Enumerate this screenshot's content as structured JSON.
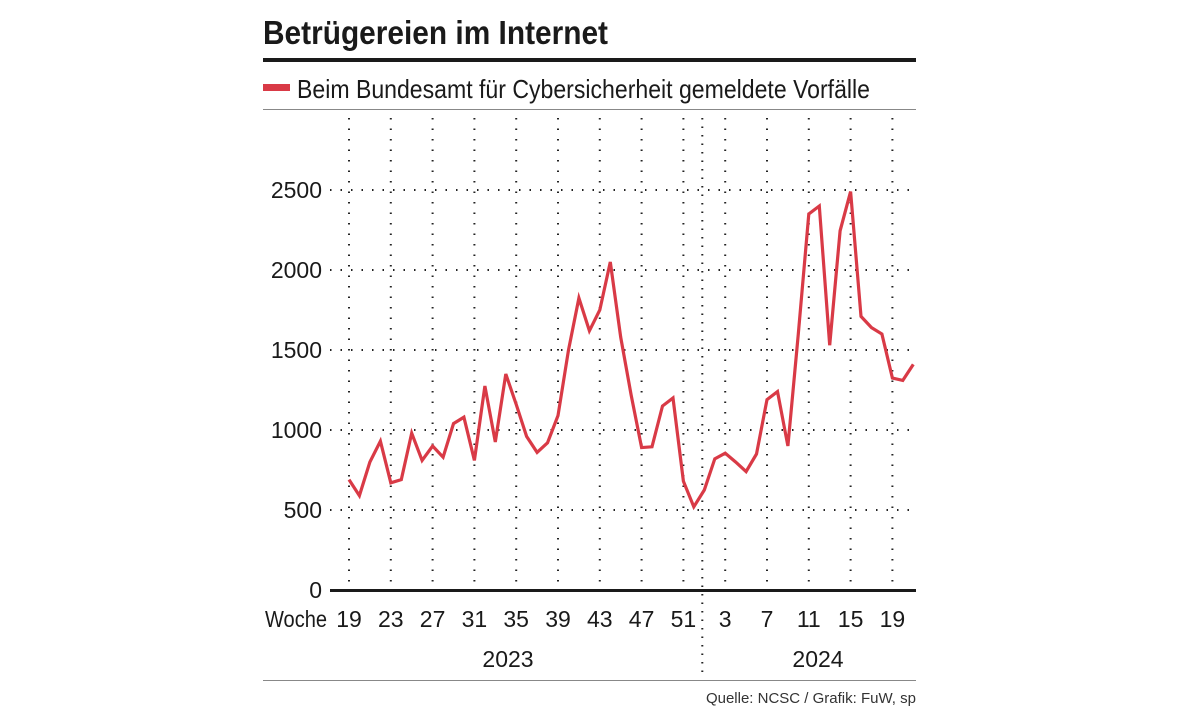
{
  "chart_data": {
    "type": "line",
    "title": "Betrügereien im Internet",
    "legend": [
      {
        "label": "Beim Bundesamt für Cybersicherheit gemeldete Vorfälle",
        "color": "#d93a46"
      }
    ],
    "xlabel": "Woche",
    "ylim": [
      0,
      2950
    ],
    "yticks": [
      "0",
      "500",
      "1000",
      "1500",
      "2000",
      "2500"
    ],
    "xticks": [
      {
        "year": 2023,
        "week": 19,
        "label": "19"
      },
      {
        "year": 2023,
        "week": 23,
        "label": "23"
      },
      {
        "year": 2023,
        "week": 27,
        "label": "27"
      },
      {
        "year": 2023,
        "week": 31,
        "label": "31"
      },
      {
        "year": 2023,
        "week": 35,
        "label": "35"
      },
      {
        "year": 2023,
        "week": 39,
        "label": "39"
      },
      {
        "year": 2023,
        "week": 43,
        "label": "43"
      },
      {
        "year": 2023,
        "week": 47,
        "label": "47"
      },
      {
        "year": 2023,
        "week": 51,
        "label": "51"
      },
      {
        "year": 2024,
        "week": 3,
        "label": "3"
      },
      {
        "year": 2024,
        "week": 7,
        "label": "7"
      },
      {
        "year": 2024,
        "week": 11,
        "label": "11"
      },
      {
        "year": 2024,
        "week": 15,
        "label": "15"
      },
      {
        "year": 2024,
        "week": 19,
        "label": "19"
      }
    ],
    "years": [
      "2023",
      "2024"
    ],
    "grid": "dotted",
    "series": [
      {
        "name": "Beim Bundesamt für Cybersicherheit gemeldete Vorfälle",
        "color": "#d93a46",
        "points": [
          [
            2023,
            19,
            690
          ],
          [
            2023,
            20,
            590
          ],
          [
            2023,
            21,
            800
          ],
          [
            2023,
            22,
            930
          ],
          [
            2023,
            23,
            670
          ],
          [
            2023,
            24,
            690
          ],
          [
            2023,
            25,
            980
          ],
          [
            2023,
            26,
            810
          ],
          [
            2023,
            27,
            900
          ],
          [
            2023,
            28,
            830
          ],
          [
            2023,
            29,
            1040
          ],
          [
            2023,
            30,
            1080
          ],
          [
            2023,
            31,
            810
          ],
          [
            2023,
            32,
            1275
          ],
          [
            2023,
            33,
            925
          ],
          [
            2023,
            34,
            1350
          ],
          [
            2023,
            35,
            1160
          ],
          [
            2023,
            36,
            960
          ],
          [
            2023,
            37,
            860
          ],
          [
            2023,
            38,
            920
          ],
          [
            2023,
            39,
            1090
          ],
          [
            2023,
            40,
            1500
          ],
          [
            2023,
            41,
            1825
          ],
          [
            2023,
            42,
            1620
          ],
          [
            2023,
            43,
            1750
          ],
          [
            2023,
            44,
            2050
          ],
          [
            2023,
            45,
            1580
          ],
          [
            2023,
            46,
            1220
          ],
          [
            2023,
            47,
            890
          ],
          [
            2023,
            48,
            895
          ],
          [
            2023,
            49,
            1150
          ],
          [
            2023,
            50,
            1200
          ],
          [
            2023,
            51,
            680
          ],
          [
            2023,
            52,
            520
          ],
          [
            2024,
            1,
            625
          ],
          [
            2024,
            2,
            820
          ],
          [
            2024,
            3,
            855
          ],
          [
            2024,
            4,
            800
          ],
          [
            2024,
            5,
            740
          ],
          [
            2024,
            6,
            850
          ],
          [
            2024,
            7,
            1190
          ],
          [
            2024,
            8,
            1240
          ],
          [
            2024,
            9,
            900
          ],
          [
            2024,
            10,
            1600
          ],
          [
            2024,
            11,
            2350
          ],
          [
            2024,
            12,
            2400
          ],
          [
            2024,
            13,
            1530
          ],
          [
            2024,
            14,
            2245
          ],
          [
            2024,
            15,
            2490
          ],
          [
            2024,
            16,
            1710
          ],
          [
            2024,
            17,
            1640
          ],
          [
            2024,
            18,
            1600
          ],
          [
            2024,
            19,
            1325
          ],
          [
            2024,
            20,
            1310
          ],
          [
            2024,
            21,
            1410
          ]
        ]
      }
    ],
    "source": "Quelle: NCSC / Grafik: FuW, sp"
  }
}
